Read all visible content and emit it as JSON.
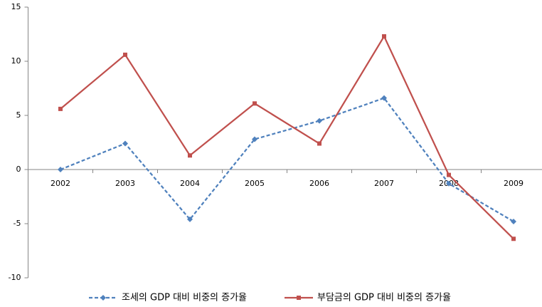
{
  "chart_data": {
    "type": "line",
    "categories": [
      "2002",
      "2003",
      "2004",
      "2005",
      "2006",
      "2007",
      "2008",
      "2009"
    ],
    "series": [
      {
        "name": "조세의 GDP 대비 비중의 증가율",
        "color": "#4f81bd",
        "dashed": true,
        "marker": "diamond",
        "values": [
          0,
          2.4,
          -4.6,
          2.8,
          4.5,
          6.6,
          -1.3,
          -4.8
        ]
      },
      {
        "name": "부담금의 GDP 대비 비중의 증가율",
        "color": "#c0504d",
        "dashed": false,
        "marker": "square",
        "values": [
          5.6,
          10.6,
          1.3,
          6.1,
          2.4,
          12.3,
          -0.5,
          -6.4
        ]
      }
    ],
    "ylim": [
      -10,
      15
    ],
    "yticks": [
      -10,
      -5,
      0,
      5,
      10,
      15
    ],
    "grid": false,
    "legend": "bottom"
  }
}
